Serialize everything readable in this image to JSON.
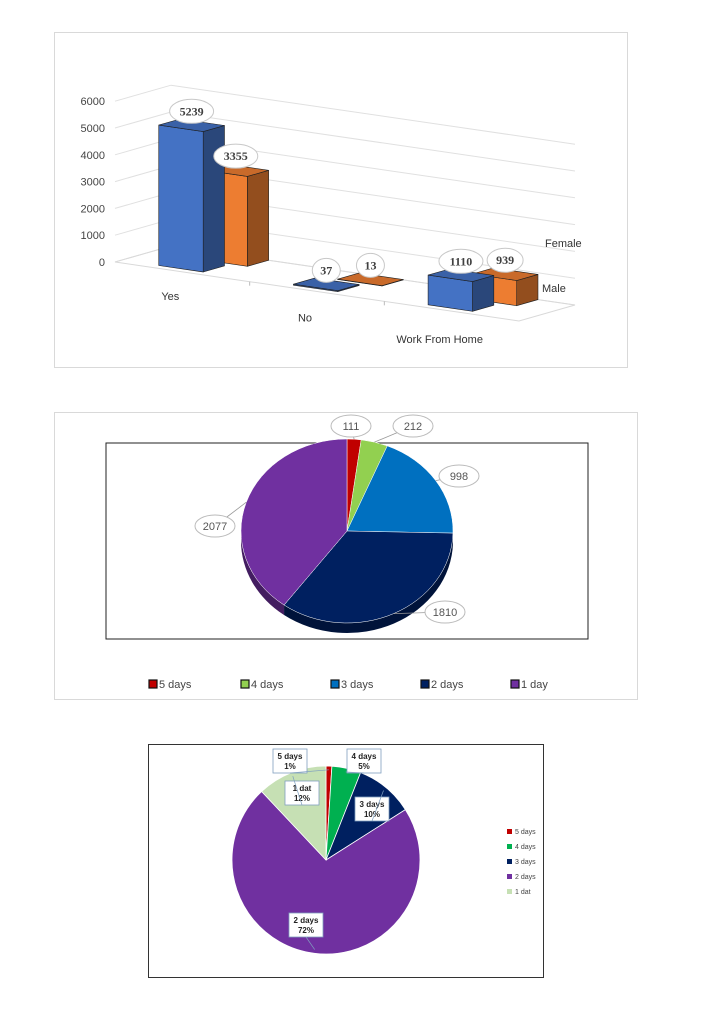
{
  "chart_data": [
    {
      "type": "bar",
      "categories": [
        "Yes",
        "No",
        "Work From Home"
      ],
      "series": [
        {
          "name": "Male",
          "values": [
            5239,
            37,
            1110
          ],
          "color": "#4472c4"
        },
        {
          "name": "Female",
          "values": [
            3355,
            13,
            939
          ],
          "color": "#ed7d31"
        }
      ],
      "yticks": [
        "0",
        "1000",
        "2000",
        "3000",
        "4000",
        "5000",
        "6000"
      ],
      "ylim": [
        0,
        6000
      ],
      "grid": true
    },
    {
      "type": "pie",
      "slices": [
        {
          "label": "5 days",
          "value": 111,
          "color": "#c00000"
        },
        {
          "label": "4 days",
          "value": 212,
          "color": "#92d050"
        },
        {
          "label": "3 days",
          "value": 998,
          "color": "#0070c0"
        },
        {
          "label": "2 days",
          "value": 1810,
          "color": "#002060"
        },
        {
          "label": "1 day",
          "value": 2077,
          "color": "#7030a0"
        }
      ],
      "legend_position": "bottom"
    },
    {
      "type": "pie",
      "slices": [
        {
          "label": "5 days",
          "percent": "1%",
          "value": 1,
          "color": "#c00000"
        },
        {
          "label": "4 days",
          "percent": "5%",
          "value": 5,
          "color": "#00b050"
        },
        {
          "label": "3 days",
          "percent": "10%",
          "value": 10,
          "color": "#002060"
        },
        {
          "label": "2 days",
          "percent": "72%",
          "value": 72,
          "color": "#7030a0"
        },
        {
          "label": "1 dat",
          "percent": "12%",
          "value": 12,
          "color": "#c6e0b4"
        }
      ],
      "legend_position": "right"
    }
  ]
}
